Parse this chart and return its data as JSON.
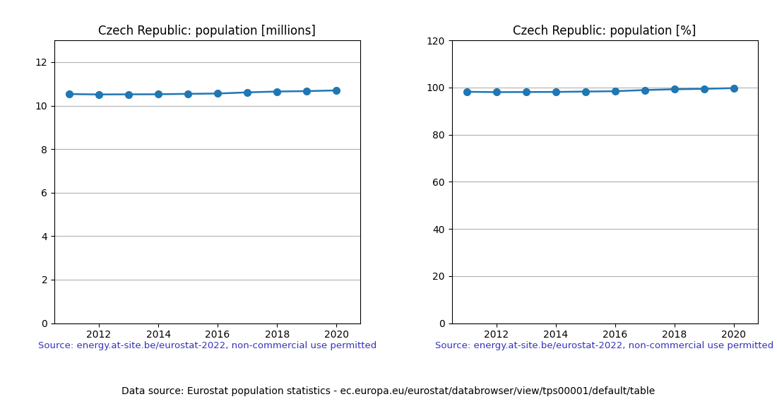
{
  "years": [
    2011,
    2012,
    2013,
    2014,
    2015,
    2016,
    2017,
    2018,
    2019,
    2020
  ],
  "population_millions": [
    10.534,
    10.516,
    10.521,
    10.525,
    10.543,
    10.558,
    10.611,
    10.65,
    10.669,
    10.701
  ],
  "population_percent": [
    98.2,
    98.05,
    98.1,
    98.14,
    98.3,
    98.44,
    98.93,
    99.27,
    99.45,
    99.76
  ],
  "title_millions": "Czech Republic: population [millions]",
  "title_percent": "Czech Republic: population [%]",
  "ylim_millions": [
    0,
    13
  ],
  "ylim_percent": [
    0,
    120
  ],
  "yticks_millions": [
    0,
    2,
    4,
    6,
    8,
    10,
    12
  ],
  "yticks_percent": [
    0,
    20,
    40,
    60,
    80,
    100,
    120
  ],
  "source_text": "Source: energy.at-site.be/eurostat-2022, non-commercial use permitted",
  "footer_text": "Data source: Eurostat population statistics - ec.europa.eu/eurostat/databrowser/view/tps00001/default/table",
  "line_color": "#1f77b4",
  "marker": "o",
  "markersize": 7,
  "source_color": "#3333bb",
  "footer_color": "#000000",
  "grid_color": "#b0b0b0",
  "background_color": "#ffffff",
  "title_fontsize": 12,
  "tick_fontsize": 10,
  "source_fontsize": 9.5,
  "footer_fontsize": 10
}
